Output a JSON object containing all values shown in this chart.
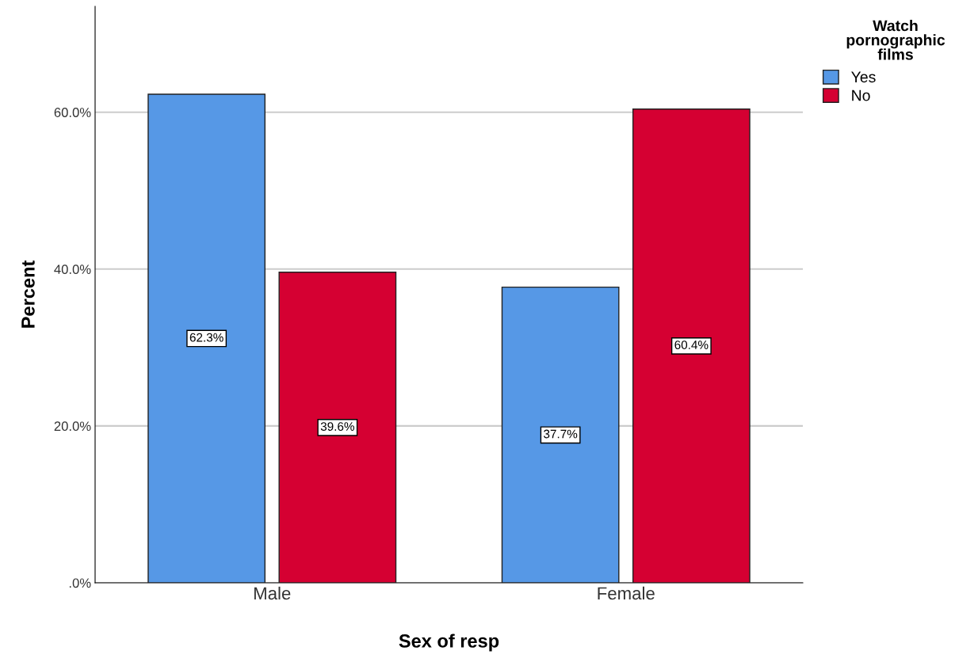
{
  "chart_data": {
    "type": "bar",
    "xlabel": "Sex of resp",
    "ylabel": "Percent",
    "legend_title": "Watch pornographic films",
    "categories": [
      "Male",
      "Female"
    ],
    "series": [
      {
        "name": "Yes",
        "color": "#5698e6",
        "values": [
          62.3,
          37.7
        ],
        "value_labels": [
          "62.3%",
          "37.7%"
        ]
      },
      {
        "name": "No",
        "color": "#d50032",
        "values": [
          39.6,
          60.4
        ],
        "value_labels": [
          "39.6%",
          "60.4%"
        ]
      }
    ],
    "ylim": [
      0,
      73.5
    ],
    "yticks": [
      {
        "value": 0,
        "label": ".0%"
      },
      {
        "value": 20,
        "label": "20.0%"
      },
      {
        "value": 40,
        "label": "40.0%"
      },
      {
        "value": 60,
        "label": "60.0%"
      }
    ],
    "grid": "y",
    "legend": "top right"
  }
}
